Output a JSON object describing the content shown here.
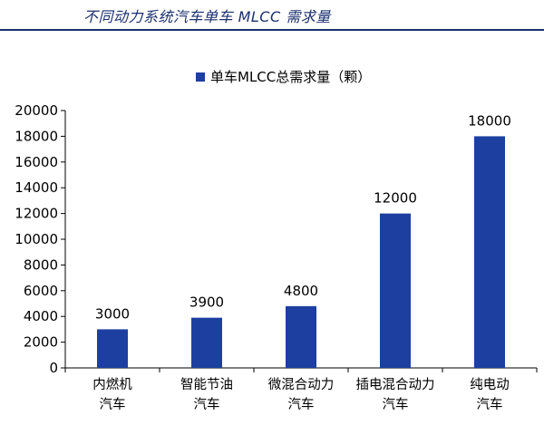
{
  "header": {
    "title": "不同动力系统汽车单车 MLCC 需求量",
    "accent_color": "#1a2f6e"
  },
  "chart_data": {
    "type": "bar",
    "title": "",
    "xlabel": "",
    "ylabel": "",
    "categories": [
      [
        "内燃机",
        "汽车"
      ],
      [
        "智能节油",
        "汽车"
      ],
      [
        "微混合动力",
        "汽车"
      ],
      [
        "插电混合动力",
        "汽车"
      ],
      [
        "纯电动",
        "汽车"
      ]
    ],
    "series": [
      {
        "name": "单车MLCC总需求量（颗）",
        "values": [
          3000,
          3900,
          4800,
          12000,
          18000
        ],
        "color": "#1c3fa0"
      }
    ],
    "ylim": [
      0,
      20000
    ],
    "yticks": [
      0,
      2000,
      4000,
      6000,
      8000,
      10000,
      12000,
      14000,
      16000,
      18000,
      20000
    ],
    "data_labels": true,
    "grid": false,
    "legend": "top-center"
  }
}
